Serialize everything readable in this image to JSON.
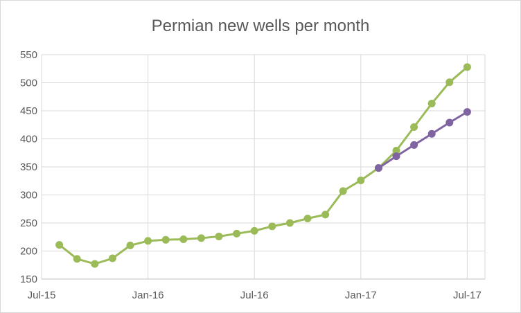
{
  "chart_data": {
    "type": "line",
    "title": "Permian new wells per month",
    "xlabel": "",
    "ylabel": "",
    "ylim": [
      150,
      550
    ],
    "yticks": [
      150,
      200,
      250,
      300,
      350,
      400,
      450,
      500,
      550
    ],
    "xticks": [
      {
        "date": "2015-07",
        "label": "Jul-15"
      },
      {
        "date": "2016-01",
        "label": "Jan-16"
      },
      {
        "date": "2016-07",
        "label": "Jul-16"
      },
      {
        "date": "2017-01",
        "label": "Jan-17"
      },
      {
        "date": "2017-07",
        "label": "Jul-17"
      }
    ],
    "xlim": [
      "2015-07",
      "2017-08"
    ],
    "grid": true,
    "legend": "none",
    "series": [
      {
        "color": "#9bbb59",
        "points": [
          [
            "2015-08",
            211
          ],
          [
            "2015-09",
            186
          ],
          [
            "2015-10",
            177
          ],
          [
            "2015-11",
            187
          ],
          [
            "2015-12",
            210
          ],
          [
            "2016-01",
            218
          ],
          [
            "2016-02",
            220
          ],
          [
            "2016-03",
            221
          ],
          [
            "2016-04",
            223
          ],
          [
            "2016-05",
            226
          ],
          [
            "2016-06",
            231
          ],
          [
            "2016-07",
            236
          ],
          [
            "2016-08",
            244
          ],
          [
            "2016-09",
            250
          ],
          [
            "2016-10",
            258
          ],
          [
            "2016-11",
            265
          ],
          [
            "2016-12",
            307
          ],
          [
            "2017-01",
            326
          ],
          [
            "2017-02",
            348
          ],
          [
            "2017-03",
            379
          ],
          [
            "2017-04",
            421
          ],
          [
            "2017-05",
            463
          ],
          [
            "2017-06",
            501
          ],
          [
            "2017-07",
            528
          ]
        ]
      },
      {
        "color": "#8064a2",
        "points": [
          [
            "2017-02",
            348
          ],
          [
            "2017-03",
            369
          ],
          [
            "2017-04",
            389
          ],
          [
            "2017-05",
            409
          ],
          [
            "2017-06",
            429
          ],
          [
            "2017-07",
            448
          ]
        ]
      }
    ]
  }
}
